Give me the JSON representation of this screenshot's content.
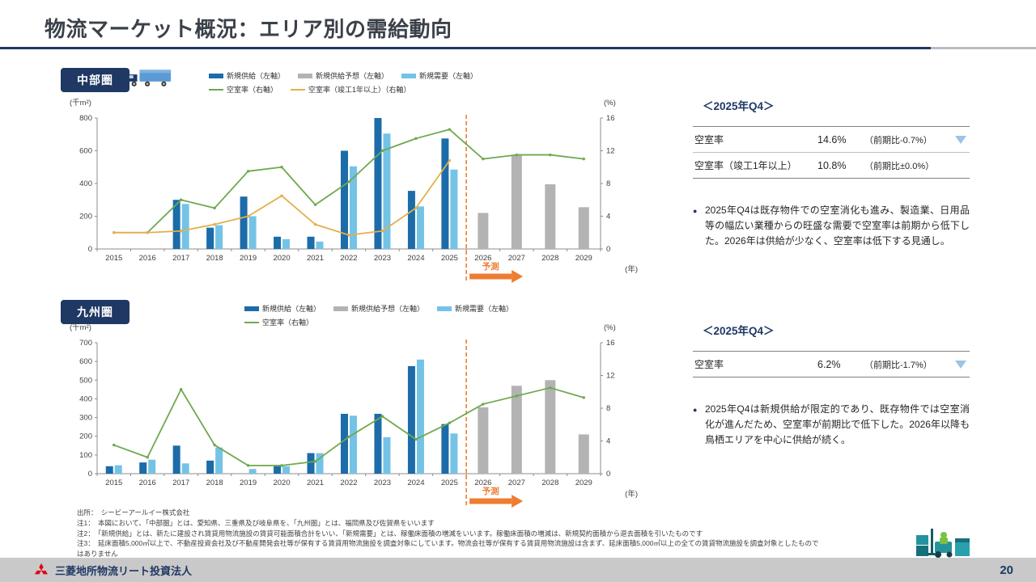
{
  "page": {
    "title": "物流マーケット概況：エリア別の需給動向",
    "page_number": "20",
    "company": "三菱地所物流リート投資法人"
  },
  "colors": {
    "navy": "#1f3864",
    "dark_blue": "#1b6ca8",
    "light_blue": "#74c3e6",
    "gray": "#b3b3b3",
    "green": "#6fa84e",
    "orange_line": "#e3b04b",
    "forecast_orange": "#ed7d31",
    "triangle_blue": "#9dc3e6",
    "logo_red": "#e60012"
  },
  "chart_data": [
    {
      "title": "中部圏",
      "type": "combo_bar_line",
      "x": [
        2015,
        2016,
        2017,
        2018,
        2019,
        2020,
        2021,
        2022,
        2023,
        2024,
        2025,
        2026,
        2027,
        2028,
        2029
      ],
      "x_unit": "(年)",
      "ylabel_left": "(千m²)",
      "ylabel_right": "(%)",
      "ylim_left": [
        0,
        800
      ],
      "yticks_left": [
        0,
        200,
        400,
        600,
        800
      ],
      "ylim_right": [
        0,
        16
      ],
      "yticks_right": [
        0,
        4,
        8,
        12,
        16
      ],
      "forecast_label": "予測",
      "legend_rows": [
        [
          0,
          1,
          2
        ],
        [
          3,
          4
        ]
      ],
      "series": [
        {
          "name": "新規供給（左軸）",
          "type": "bar",
          "axis": "left",
          "color_key": "dark_blue",
          "values": [
            0,
            0,
            300,
            130,
            320,
            75,
            75,
            600,
            800,
            355,
            675,
            null,
            null,
            null,
            null
          ]
        },
        {
          "name": "新規供給予想（左軸）",
          "type": "bar",
          "axis": "left",
          "color_key": "gray",
          "values": [
            null,
            null,
            null,
            null,
            null,
            null,
            null,
            null,
            null,
            null,
            null,
            220,
            570,
            395,
            255
          ]
        },
        {
          "name": "新規需要（左軸）",
          "type": "bar",
          "axis": "left",
          "color_key": "light_blue",
          "values": [
            0,
            0,
            275,
            145,
            200,
            60,
            45,
            505,
            705,
            260,
            485,
            null,
            null,
            null,
            null
          ]
        },
        {
          "name": "空室率（右軸）",
          "type": "line",
          "axis": "right",
          "color_key": "green",
          "values": [
            2.0,
            2.0,
            6.0,
            5.0,
            9.5,
            10.0,
            5.4,
            8.2,
            12.0,
            13.5,
            14.6,
            11.0,
            11.5,
            11.5,
            11.0
          ]
        },
        {
          "name": "空室率（竣工1年以上）（右軸）",
          "type": "line",
          "axis": "right",
          "color_key": "orange_line",
          "values": [
            2.0,
            2.0,
            2.2,
            3.0,
            4.0,
            6.5,
            3.0,
            1.7,
            2.2,
            5.0,
            10.8,
            null,
            null,
            null,
            null
          ]
        }
      ]
    },
    {
      "title": "九州圏",
      "type": "combo_bar_line",
      "x": [
        2015,
        2016,
        2017,
        2018,
        2019,
        2020,
        2021,
        2022,
        2023,
        2024,
        2025,
        2026,
        2027,
        2028,
        2029
      ],
      "x_unit": "(年)",
      "ylabel_left": "(千m²)",
      "ylabel_right": "(%)",
      "ylim_left": [
        0,
        700
      ],
      "yticks_left": [
        0,
        100,
        200,
        300,
        400,
        500,
        600,
        700
      ],
      "ylim_right": [
        0,
        16
      ],
      "yticks_right": [
        0,
        4,
        8,
        12,
        16
      ],
      "forecast_label": "予測",
      "legend_rows": [
        [
          0,
          1,
          2
        ],
        [
          3
        ]
      ],
      "series": [
        {
          "name": "新規供給（左軸）",
          "type": "bar",
          "axis": "left",
          "color_key": "dark_blue",
          "values": [
            40,
            60,
            150,
            70,
            0,
            40,
            110,
            320,
            320,
            575,
            265,
            null,
            null,
            null,
            null
          ]
        },
        {
          "name": "新規供給予想（左軸）",
          "type": "bar",
          "axis": "left",
          "color_key": "gray",
          "values": [
            null,
            null,
            null,
            null,
            null,
            null,
            null,
            null,
            null,
            null,
            null,
            355,
            470,
            500,
            210
          ]
        },
        {
          "name": "新規需要（左軸）",
          "type": "bar",
          "axis": "left",
          "color_key": "light_blue",
          "values": [
            45,
            75,
            55,
            140,
            25,
            40,
            110,
            310,
            195,
            610,
            215,
            null,
            null,
            null,
            null
          ]
        },
        {
          "name": "空室率（右軸）",
          "type": "line",
          "axis": "right",
          "color_key": "green",
          "values": [
            3.5,
            2.0,
            10.3,
            3.5,
            1.0,
            1.0,
            1.5,
            4.5,
            7.0,
            4.2,
            6.2,
            8.5,
            9.5,
            10.5,
            9.3
          ]
        }
      ]
    }
  ],
  "panels": [
    {
      "heading": "＜2025年Q4＞",
      "rows": [
        {
          "label": "空室率",
          "value": "14.6%",
          "change": "（前期比-0.7%）",
          "trend": "down"
        },
        {
          "label": "空室率（竣工1年以上）",
          "value": "10.8%",
          "change": "（前期比±0.0%）",
          "trend": ""
        }
      ],
      "bullet": "2025年Q4は既存物件での空室消化も進み、製造業、日用品等の幅広い業種からの旺盛な需要で空室率は前期から低下した。2026年は供給が少なく、空室率は低下する見通し。"
    },
    {
      "heading": "＜2025年Q4＞",
      "rows": [
        {
          "label": "空室率",
          "value": "6.2%",
          "change": "（前期比-1.7%）",
          "trend": "down"
        }
      ],
      "bullet": "2025年Q4は新規供給が限定的であり、既存物件では空室消化が進んだため、空室率が前期比で低下した。2026年以降も鳥栖エリアを中心に供給が続く。"
    }
  ],
  "notes": [
    "出所：　シービーアールイー株式会社",
    "注1：　本図において、「中部圏」とは、愛知県、三重県及び岐阜県を、「九州圏」とは、福岡県及び佐賀県をいいます",
    "注2：　「新規供給」とは、新たに建設され賃貸用物流施設の賃貸可能面積合計をいい、「新規需要」とは、稼働床面積の増減をいいます。稼働床面積の増減は、新規契約面積から退去面積を引いたものです",
    "注3：　延床面積5,000㎡以上で、不動産投資会社及び不動産開発会社等が保有する賃貸用物流施設を調査対象にしています。物流会社等が保有する賃貸用物流施設は含まず、延床面積5,000㎡以上の全ての賃貸物流施設を調査対象としたものではありません"
  ]
}
